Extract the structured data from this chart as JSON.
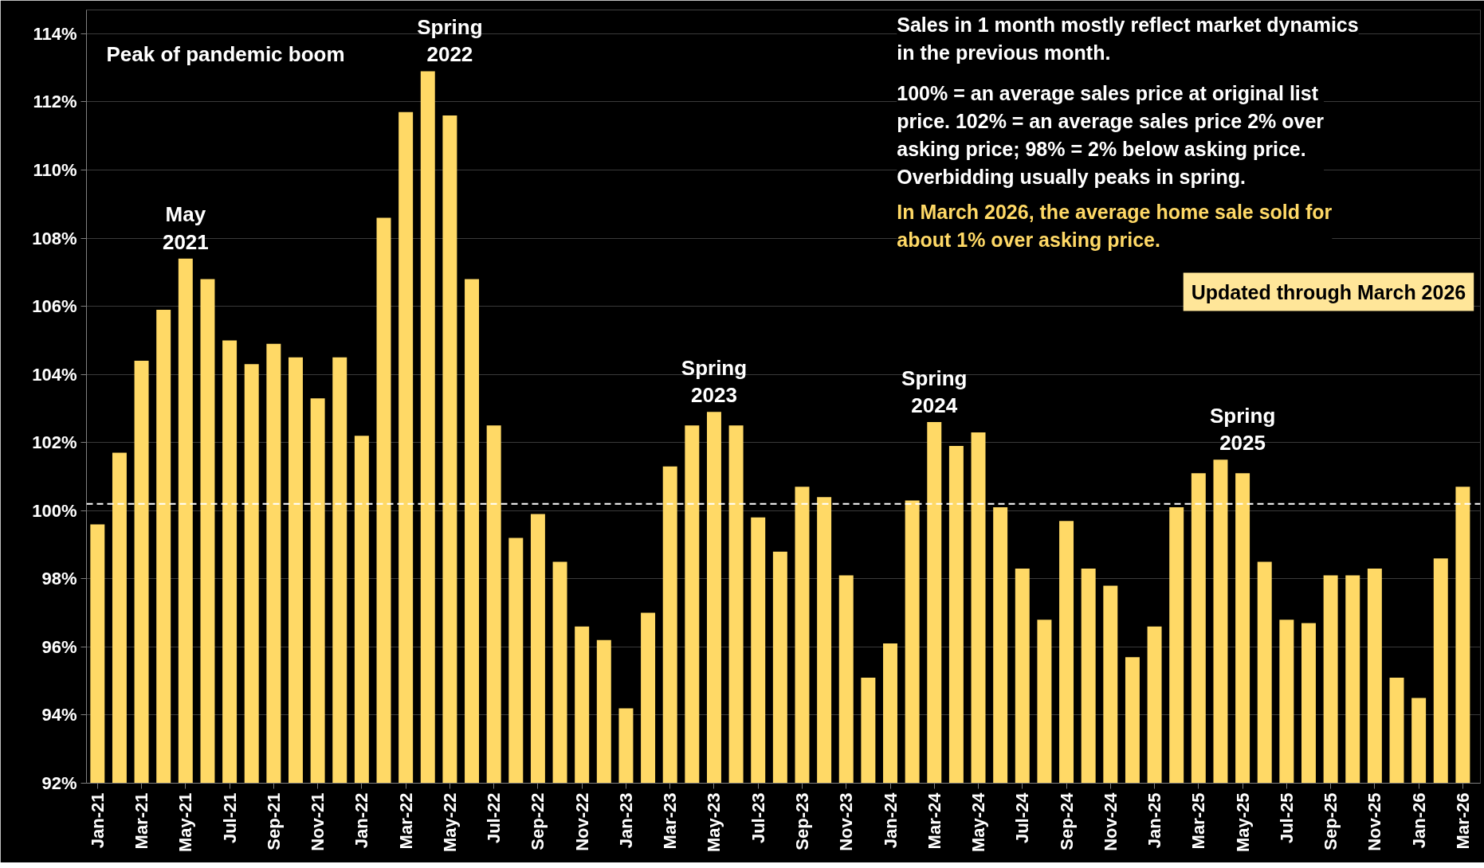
{
  "chart_data": {
    "type": "bar",
    "categories": [
      "Jan-21",
      null,
      "Mar-21",
      null,
      "May-21",
      null,
      "Jul-21",
      null,
      "Sep-21",
      null,
      "Nov-21",
      null,
      "Jan-22",
      null,
      "Mar-22",
      null,
      "May-22",
      null,
      "Jul-22",
      null,
      "Sep-22",
      null,
      "Nov-22",
      null,
      "Jan-23",
      null,
      "Mar-23",
      null,
      "May-23",
      null,
      "Jul-23",
      null,
      "Sep-23",
      null,
      "Nov-23",
      null,
      "Jan-24",
      null,
      "Mar-24",
      null,
      "May-24",
      null,
      "Jul-24",
      null,
      "Sep-24",
      null,
      "Nov-24",
      null,
      "Jan-25",
      null,
      "Mar-25",
      null,
      "May-25",
      null,
      "Jul-25",
      null,
      "Sep-25",
      null,
      "Nov-25",
      null,
      "Jan-26",
      null,
      "Mar-26"
    ],
    "series": [
      {
        "color": "#ffd966",
        "values": [
          99.6,
          101.7,
          104.4,
          105.9,
          107.4,
          106.8,
          105.0,
          104.3,
          104.9,
          104.5,
          103.3,
          104.5,
          102.2,
          108.6,
          111.7,
          112.9,
          111.6,
          106.8,
          102.5,
          99.2,
          99.9,
          98.5,
          96.6,
          96.2,
          94.2,
          97.0,
          101.3,
          102.5,
          102.9,
          102.5,
          99.8,
          98.8,
          100.7,
          100.4,
          98.1,
          95.1,
          96.1,
          100.3,
          102.6,
          101.9,
          102.3,
          100.1,
          98.3,
          96.8,
          99.7,
          98.3,
          97.8,
          95.7,
          96.6,
          100.1,
          101.1,
          101.5,
          101.1,
          98.5,
          96.8,
          96.7,
          98.1,
          98.1,
          98.3,
          95.1,
          94.5,
          98.6,
          100.7
        ]
      }
    ],
    "ylim": [
      92,
      114.7
    ],
    "yticks": [
      {
        "value": 92,
        "label": "92%"
      },
      {
        "value": 94,
        "label": "94%"
      },
      {
        "value": 96,
        "label": "96%"
      },
      {
        "value": 98,
        "label": "98%"
      },
      {
        "value": 100,
        "label": "100%"
      },
      {
        "value": 102,
        "label": "102%"
      },
      {
        "value": 104,
        "label": "104%"
      },
      {
        "value": 106,
        "label": "106%"
      },
      {
        "value": 108,
        "label": "108%"
      },
      {
        "value": 110,
        "label": "110%"
      },
      {
        "value": 112,
        "label": "112%"
      },
      {
        "value": 114,
        "label": "114%"
      }
    ],
    "grid": "y",
    "ref_lines": [
      {
        "axis": "y",
        "value": 100.2,
        "color": "#ffffff",
        "line_style": "dashed"
      }
    ],
    "annotations": [
      {
        "text": "May 2021",
        "x": "May-21",
        "y": 107.4
      },
      {
        "text": "Spring 2022",
        "x": "May-22",
        "y": 111.6
      },
      {
        "text": "Spring 2023",
        "x": "May-23",
        "y": 102.9
      },
      {
        "text": "Spring 2024",
        "x": "Mar-24",
        "y": 102.6
      },
      {
        "text": "Spring 2025",
        "x": "May-25",
        "y": 101.1
      },
      "Peak of pandemic boom",
      "Sales in 1 month mostly reflect market dynamics in the previous month.",
      "100% = an average sales price at original list price. 102% = an average sales price 2% over asking price; 98% = 2% below asking price. Overbidding usually peaks in spring.",
      "In March 2026, the average home sale sold for about 1% over asking price.",
      "Updated through March 2026"
    ]
  }
}
